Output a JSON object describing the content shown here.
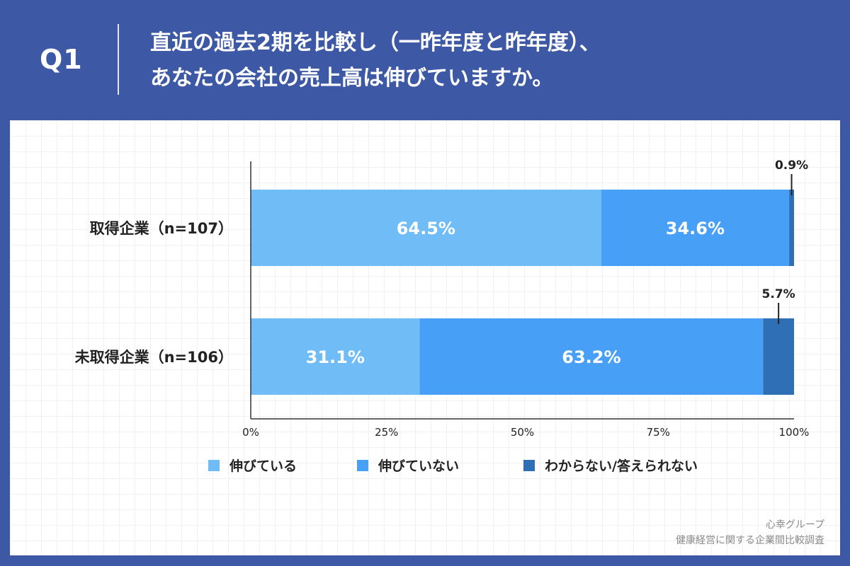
{
  "header": {
    "q_label": "Q1",
    "question_line1": "直近の過去2期を比較し（一昨年度と昨年度）、",
    "question_line2": "あなたの会社の売上高は伸びていますか。"
  },
  "chart_data": {
    "type": "bar",
    "orientation": "horizontal",
    "stacked": true,
    "categories": [
      "取得企業（n=107）",
      "未取得企業（n=106）"
    ],
    "series": [
      {
        "name": "伸びている",
        "values": [
          64.5,
          31.1
        ],
        "color": "#70bcf7"
      },
      {
        "name": "伸びていない",
        "values": [
          34.6,
          63.2
        ],
        "color": "#47a0f5"
      },
      {
        "name": "わからない/答えられない",
        "values": [
          0.9,
          5.7
        ],
        "color": "#2f6fb6"
      }
    ],
    "value_labels": [
      [
        "64.5%",
        "34.6%",
        "0.9%"
      ],
      [
        "31.1%",
        "63.2%",
        "5.7%"
      ]
    ],
    "x_ticks": [
      "0%",
      "25%",
      "50%",
      "75%",
      "100%"
    ],
    "xlim": [
      0,
      100
    ],
    "legend_position": "bottom"
  },
  "footer": {
    "line1": "心幸グループ",
    "line2": "健康経営に関する企業間比較調査"
  }
}
